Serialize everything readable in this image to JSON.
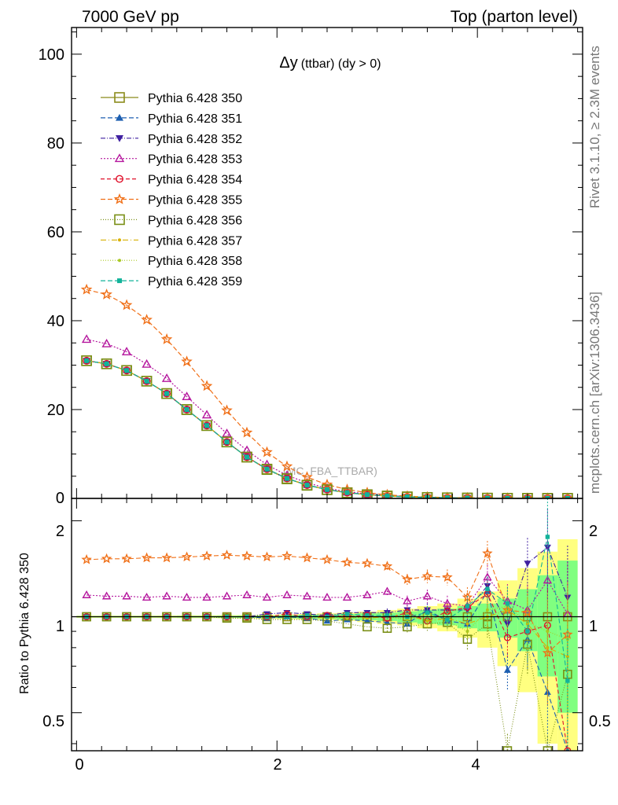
{
  "header": {
    "left": "7000 GeV pp",
    "right": "Top (parton level)"
  },
  "side_labels": {
    "rivet": "Rivet 3.1.10, ≥ 2.3M events",
    "mcplots": "mcplots.cern.ch [arXiv:1306.3436]"
  },
  "plot_title": {
    "symbol": "Δy",
    "rest": "(ttbar) (dy > 0)"
  },
  "watermark": "(MC_FBA_TTBAR)",
  "main_yticks": [
    "0",
    "20",
    "40",
    "60",
    "80",
    "100"
  ],
  "ratio_yticks": [
    "0.5",
    "1",
    "2"
  ],
  "xticks": [
    "0",
    "2",
    "4"
  ],
  "ratio_ylabel": "Ratio to Pythia 6.428 350",
  "chart_data": {
    "type": "line",
    "x": [
      0.1,
      0.3,
      0.5,
      0.7,
      0.9,
      1.1,
      1.3,
      1.5,
      1.7,
      1.9,
      2.1,
      2.3,
      2.5,
      2.7,
      2.9,
      3.1,
      3.3,
      3.5,
      3.7,
      3.9,
      4.1,
      4.3,
      4.5,
      4.7,
      4.9
    ],
    "xlim": [
      -0.05,
      5.05
    ],
    "ylim": [
      0,
      106
    ],
    "ratio_ylim": [
      0.38,
      2.35
    ],
    "ratio_scale": "log",
    "grid": false,
    "legend_position": "top-left",
    "series": [
      {
        "name": "Pythia 6.428 350",
        "color": "#8b8b1a",
        "dash": "",
        "marker": "square-open",
        "values": [
          31.0,
          30.3,
          28.8,
          26.4,
          23.6,
          20.0,
          16.4,
          12.7,
          9.3,
          6.6,
          4.5,
          3.0,
          2.0,
          1.3,
          0.85,
          0.55,
          0.35,
          0.22,
          0.14,
          0.09,
          0.06,
          0.04,
          0.025,
          0.016,
          0.01
        ],
        "ratio": [
          1,
          1,
          1,
          1,
          1,
          1,
          1,
          1,
          1,
          1,
          1,
          1,
          1,
          1,
          1,
          1,
          1,
          1,
          1,
          1,
          1,
          1,
          1,
          1,
          1
        ]
      },
      {
        "name": "Pythia 6.428 351",
        "color": "#1d5fb0",
        "dash": "6,3",
        "marker": "triangle-up",
        "values": [
          31.0,
          30.3,
          28.8,
          26.4,
          23.6,
          20.0,
          16.4,
          12.7,
          9.3,
          6.6,
          4.5,
          3.0,
          2.0,
          1.3,
          0.85,
          0.55,
          0.35,
          0.22,
          0.14,
          0.09,
          0.06,
          0.04,
          0.025,
          0.016,
          0.01
        ],
        "ratio": [
          1.0,
          1.0,
          1.0,
          1.0,
          1.0,
          1.0,
          1.0,
          1.0,
          1.0,
          0.99,
          1.0,
          0.99,
          0.97,
          0.98,
          0.97,
          0.96,
          0.95,
          1.05,
          0.97,
          0.95,
          1.2,
          0.68,
          0.85,
          0.58,
          0.35
        ]
      },
      {
        "name": "Pythia 6.428 352",
        "color": "#3f1fa0",
        "dash": "6,2,1,2",
        "marker": "triangle-down",
        "values": [
          31.0,
          30.3,
          28.8,
          26.4,
          23.6,
          20.0,
          16.4,
          12.7,
          9.3,
          6.6,
          4.5,
          3.0,
          2.0,
          1.3,
          0.85,
          0.55,
          0.35,
          0.22,
          0.14,
          0.09,
          0.06,
          0.04,
          0.025,
          0.016,
          0.01
        ],
        "ratio": [
          1.0,
          1.0,
          1.0,
          1.0,
          1.0,
          1.0,
          1.0,
          1.0,
          1.0,
          1.02,
          1.03,
          1.02,
          1.01,
          1.03,
          1.03,
          1.03,
          1.05,
          1.05,
          1.05,
          1.05,
          1.25,
          0.95,
          1.47,
          1.65,
          1.15
        ]
      },
      {
        "name": "Pythia 6.428 353",
        "color": "#b5179e",
        "dash": "2,2",
        "marker": "triangle-open",
        "values": [
          35.8,
          34.8,
          33.0,
          30.2,
          27.0,
          22.9,
          18.8,
          14.6,
          10.8,
          7.6,
          5.2,
          3.5,
          2.3,
          1.5,
          1.0,
          0.66,
          0.4,
          0.26,
          0.16,
          0.1,
          0.07,
          0.045,
          0.029,
          0.018,
          0.011
        ],
        "ratio": [
          1.17,
          1.16,
          1.16,
          1.15,
          1.16,
          1.15,
          1.15,
          1.16,
          1.17,
          1.15,
          1.17,
          1.16,
          1.15,
          1.15,
          1.17,
          1.2,
          1.12,
          1.16,
          1.1,
          1.08,
          1.33,
          1.12,
          1.05,
          1.3,
          1.02
        ]
      },
      {
        "name": "Pythia 6.428 354",
        "color": "#e0112b",
        "dash": "5,3",
        "marker": "circle-open",
        "values": [
          31.0,
          30.3,
          28.8,
          26.4,
          23.6,
          20.0,
          16.4,
          12.7,
          9.3,
          6.6,
          4.5,
          3.0,
          2.0,
          1.3,
          0.85,
          0.55,
          0.35,
          0.22,
          0.14,
          0.09,
          0.06,
          0.04,
          0.025,
          0.016,
          0.01
        ],
        "ratio": [
          1.0,
          1.0,
          1.0,
          1.0,
          1.0,
          1.0,
          1.0,
          1.0,
          1.0,
          1.0,
          1.02,
          1.0,
          1.01,
          1.0,
          1.01,
          0.99,
          1.03,
          0.97,
          1.04,
          1.07,
          1.18,
          0.86,
          0.9,
          0.94,
          0.32
        ]
      },
      {
        "name": "Pythia 6.428 355",
        "color": "#f07018",
        "dash": "6,3",
        "marker": "star",
        "values": [
          47.0,
          45.9,
          43.5,
          40.2,
          35.8,
          30.8,
          25.3,
          19.8,
          14.8,
          10.4,
          7.2,
          4.8,
          3.1,
          2.0,
          1.3,
          0.82,
          0.5,
          0.33,
          0.2,
          0.12,
          0.09,
          0.05,
          0.03,
          0.02,
          0.013
        ],
        "ratio": [
          1.51,
          1.52,
          1.52,
          1.53,
          1.53,
          1.54,
          1.55,
          1.56,
          1.55,
          1.54,
          1.55,
          1.53,
          1.51,
          1.48,
          1.47,
          1.44,
          1.31,
          1.34,
          1.33,
          1.15,
          1.58,
          1.05,
          1.03,
          0.77,
          0.88
        ]
      },
      {
        "name": "Pythia 6.428 356",
        "color": "#7a8f16",
        "dash": "1,2",
        "marker": "square-open",
        "values": [
          31.0,
          30.3,
          28.8,
          26.4,
          23.6,
          20.0,
          16.4,
          12.7,
          9.3,
          6.5,
          4.4,
          2.95,
          1.95,
          1.25,
          0.8,
          0.51,
          0.33,
          0.21,
          0.13,
          0.08,
          0.055,
          0.036,
          0.022,
          0.014,
          0.007
        ],
        "ratio": [
          1.0,
          1.0,
          1.0,
          1.0,
          1.0,
          1.0,
          1.0,
          0.99,
          0.99,
          0.98,
          0.98,
          0.98,
          0.97,
          0.95,
          0.93,
          0.92,
          0.93,
          0.95,
          0.96,
          0.85,
          0.95,
          0.38,
          0.82,
          0.32,
          0.66
        ]
      },
      {
        "name": "Pythia 6.428 357",
        "color": "#d8b000",
        "dash": "7,3,1,3",
        "marker": "dot",
        "values": [
          31.0,
          30.3,
          28.8,
          26.4,
          23.6,
          20.0,
          16.4,
          12.7,
          9.3,
          6.6,
          4.5,
          3.0,
          2.0,
          1.3,
          0.85,
          0.55,
          0.35,
          0.22,
          0.14,
          0.09,
          0.06,
          0.04,
          0.025,
          0.016,
          0.01
        ],
        "ratio": [
          1.0,
          1.0,
          1.0,
          1.0,
          1.0,
          1.0,
          1.0,
          1.0,
          1.0,
          1.0,
          1.0,
          1.0,
          0.99,
          1.0,
          0.99,
          1.0,
          1.01,
          0.97,
          0.99,
          0.95,
          1.0,
          1.05,
          0.95,
          0.8,
          0.75
        ]
      },
      {
        "name": "Pythia 6.428 358",
        "color": "#a8c820",
        "dash": "1,2",
        "marker": "dot",
        "values": [
          31.0,
          30.3,
          28.8,
          26.4,
          23.6,
          20.0,
          16.4,
          12.7,
          9.3,
          6.6,
          4.5,
          3.0,
          2.0,
          1.3,
          0.85,
          0.55,
          0.35,
          0.22,
          0.14,
          0.09,
          0.06,
          0.04,
          0.025,
          0.016,
          0.01
        ],
        "ratio": [
          1.0,
          1.0,
          1.0,
          1.0,
          1.0,
          1.0,
          1.0,
          1.0,
          1.0,
          1.0,
          1.0,
          1.0,
          1.0,
          0.99,
          1.0,
          1.0,
          0.98,
          1.02,
          0.97,
          0.9,
          1.05,
          1.08,
          0.96,
          0.9,
          0.85
        ]
      },
      {
        "name": "Pythia 6.428 359",
        "color": "#12b39a",
        "dash": "6,3",
        "marker": "square-filled",
        "values": [
          31.0,
          30.3,
          28.8,
          26.4,
          23.6,
          20.0,
          16.4,
          12.7,
          9.3,
          6.6,
          4.5,
          3.0,
          2.0,
          1.3,
          0.85,
          0.55,
          0.35,
          0.22,
          0.14,
          0.09,
          0.06,
          0.04,
          0.025,
          0.016,
          0.01
        ],
        "ratio": [
          1.0,
          1.0,
          1.0,
          1.0,
          1.0,
          1.0,
          1.0,
          1.0,
          1.0,
          1.0,
          1.0,
          1.01,
          1.0,
          1.02,
          1.01,
          1.01,
          1.0,
          1.03,
          0.98,
          1.08,
          1.22,
          1.1,
          0.9,
          1.78,
          0.63
        ]
      }
    ],
    "ratio_band_green": [
      0.005,
      0.005,
      0.005,
      0.005,
      0.005,
      0.006,
      0.006,
      0.007,
      0.008,
      0.009,
      0.011,
      0.013,
      0.016,
      0.02,
      0.025,
      0.03,
      0.04,
      0.05,
      0.06,
      0.08,
      0.1,
      0.14,
      0.22,
      0.35,
      0.5
    ],
    "ratio_band_yellow": [
      0.008,
      0.008,
      0.008,
      0.008,
      0.009,
      0.01,
      0.01,
      0.011,
      0.012,
      0.014,
      0.017,
      0.02,
      0.025,
      0.03,
      0.038,
      0.05,
      0.06,
      0.08,
      0.1,
      0.14,
      0.2,
      0.3,
      0.42,
      0.6,
      0.75
    ]
  }
}
